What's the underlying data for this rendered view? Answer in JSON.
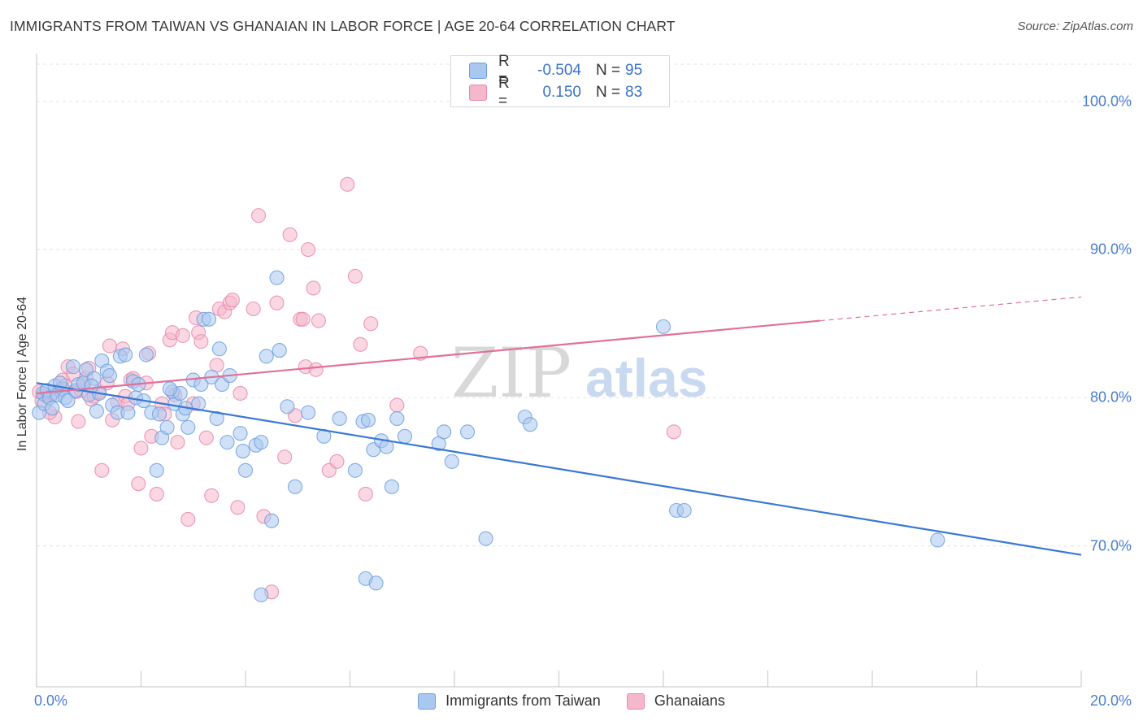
{
  "header": {
    "title": "IMMIGRANTS FROM TAIWAN VS GHANAIAN IN LABOR FORCE | AGE 20-64 CORRELATION CHART",
    "source": "Source: ZipAtlas.com"
  },
  "watermark": {
    "zip": "ZIP",
    "atlas": "atlas"
  },
  "legend": {
    "rows": [
      {
        "r_label": "R =",
        "r_value": "-0.504",
        "n_label": "N =",
        "n_value": "95",
        "color": "#a9c8f0"
      },
      {
        "r_label": "R =",
        "r_value": "0.150",
        "n_label": "N =",
        "n_value": "83",
        "color": "#f5b7cb"
      }
    ]
  },
  "bottom_legend": {
    "taiwan": "Immigrants from Taiwan",
    "ghana": "Ghanaians"
  },
  "colors": {
    "taiwan_fill": "#a9c8f0",
    "taiwan_stroke": "#6f9fde",
    "taiwan_line": "#3a78d4",
    "ghana_fill": "#f5b7cb",
    "ghana_stroke": "#e88aaa",
    "ghana_line": "#e2709a",
    "tick_label": "#4a7fd0",
    "grid": "#e2e2e2"
  },
  "chart_data": {
    "type": "scatter",
    "title": "IMMIGRANTS FROM TAIWAN VS GHANAIAN IN LABOR FORCE | AGE 20-64 CORRELATION CHART",
    "xlabel": "",
    "ylabel": "In Labor Force | Age 20-64",
    "xlim": [
      0,
      20
    ],
    "ylim": [
      60.5,
      103
    ],
    "x_ticks": [
      "0.0%",
      "20.0%"
    ],
    "y_ticks": [
      {
        "value": 70,
        "label": "70.0%"
      },
      {
        "value": 80,
        "label": "80.0%"
      },
      {
        "value": 90,
        "label": "90.0%"
      },
      {
        "value": 100,
        "label": "100.0%"
      }
    ],
    "grid": true,
    "series": [
      {
        "name": "Immigrants from Taiwan",
        "r": -0.504,
        "n": 95,
        "trend": {
          "x0": 0,
          "y0": 81.0,
          "x1": 20,
          "y1": 69.4
        },
        "points": [
          [
            0.05,
            79.0
          ],
          [
            0.12,
            80.3
          ],
          [
            0.15,
            79.6
          ],
          [
            0.2,
            80.5
          ],
          [
            0.25,
            80.0
          ],
          [
            0.3,
            79.3
          ],
          [
            0.35,
            80.8
          ],
          [
            0.4,
            80.2
          ],
          [
            0.5,
            80.6
          ],
          [
            0.55,
            80.0
          ],
          [
            0.6,
            79.8
          ],
          [
            0.7,
            82.1
          ],
          [
            0.75,
            80.5
          ],
          [
            0.8,
            80.9
          ],
          [
            0.9,
            81.0
          ],
          [
            0.95,
            81.9
          ],
          [
            1.0,
            80.2
          ],
          [
            1.1,
            81.3
          ],
          [
            1.15,
            79.1
          ],
          [
            1.2,
            80.3
          ],
          [
            1.25,
            82.5
          ],
          [
            1.35,
            81.8
          ],
          [
            1.4,
            81.5
          ],
          [
            1.45,
            79.5
          ],
          [
            1.55,
            79.0
          ],
          [
            1.6,
            82.8
          ],
          [
            1.7,
            82.9
          ],
          [
            1.75,
            79.0
          ],
          [
            1.85,
            81.1
          ],
          [
            1.9,
            80.0
          ],
          [
            1.95,
            80.9
          ],
          [
            2.05,
            79.8
          ],
          [
            2.1,
            82.9
          ],
          [
            2.2,
            79.0
          ],
          [
            2.3,
            75.1
          ],
          [
            2.35,
            78.9
          ],
          [
            2.4,
            77.3
          ],
          [
            2.5,
            78.0
          ],
          [
            2.6,
            80.4
          ],
          [
            2.65,
            79.6
          ],
          [
            2.75,
            80.3
          ],
          [
            2.8,
            78.9
          ],
          [
            2.85,
            79.3
          ],
          [
            2.9,
            78.0
          ],
          [
            3.0,
            81.2
          ],
          [
            3.1,
            79.6
          ],
          [
            3.15,
            80.9
          ],
          [
            3.2,
            85.3
          ],
          [
            3.3,
            85.3
          ],
          [
            3.35,
            81.4
          ],
          [
            3.45,
            78.6
          ],
          [
            3.5,
            83.3
          ],
          [
            3.55,
            80.9
          ],
          [
            3.65,
            77.0
          ],
          [
            3.7,
            81.5
          ],
          [
            3.9,
            77.6
          ],
          [
            4.0,
            75.1
          ],
          [
            4.2,
            76.8
          ],
          [
            4.3,
            77.0
          ],
          [
            4.4,
            82.8
          ],
          [
            4.5,
            71.7
          ],
          [
            4.6,
            88.1
          ],
          [
            4.65,
            83.2
          ],
          [
            4.8,
            79.4
          ],
          [
            4.95,
            74.0
          ],
          [
            5.5,
            77.4
          ],
          [
            5.8,
            78.6
          ],
          [
            6.1,
            75.1
          ],
          [
            6.25,
            78.4
          ],
          [
            6.35,
            78.5
          ],
          [
            6.45,
            76.5
          ],
          [
            6.6,
            77.1
          ],
          [
            6.7,
            76.7
          ],
          [
            6.8,
            74.0
          ],
          [
            6.9,
            78.6
          ],
          [
            7.05,
            77.4
          ],
          [
            7.7,
            76.9
          ],
          [
            7.8,
            77.7
          ],
          [
            7.95,
            75.7
          ],
          [
            8.25,
            77.7
          ],
          [
            8.6,
            70.5
          ],
          [
            9.35,
            78.7
          ],
          [
            9.45,
            78.2
          ],
          [
            12.0,
            84.8
          ],
          [
            12.25,
            72.4
          ],
          [
            12.4,
            72.4
          ],
          [
            17.25,
            70.4
          ],
          [
            4.3,
            66.7
          ],
          [
            6.3,
            67.8
          ],
          [
            6.5,
            67.5
          ],
          [
            0.45,
            81.0
          ],
          [
            1.05,
            80.8
          ],
          [
            2.55,
            80.6
          ],
          [
            3.95,
            76.4
          ],
          [
            5.2,
            79.0
          ]
        ]
      },
      {
        "name": "Ghanaians",
        "r": 0.15,
        "n": 83,
        "trend": {
          "x0": 0,
          "y0": 80.3,
          "x1": 15,
          "y1": 85.2,
          "dash_to_x": 20,
          "dash_to_y": 86.8
        },
        "points": [
          [
            0.05,
            80.4
          ],
          [
            0.1,
            79.8
          ],
          [
            0.2,
            80.1
          ],
          [
            0.3,
            80.3
          ],
          [
            0.35,
            78.7
          ],
          [
            0.45,
            80.5
          ],
          [
            0.5,
            81.2
          ],
          [
            0.55,
            80.8
          ],
          [
            0.6,
            82.1
          ],
          [
            0.7,
            81.6
          ],
          [
            0.75,
            80.4
          ],
          [
            0.8,
            78.4
          ],
          [
            0.85,
            80.5
          ],
          [
            0.9,
            80.9
          ],
          [
            0.95,
            81.3
          ],
          [
            1.0,
            82.0
          ],
          [
            1.05,
            79.9
          ],
          [
            1.1,
            80.1
          ],
          [
            1.2,
            80.4
          ],
          [
            1.25,
            75.1
          ],
          [
            1.35,
            81.0
          ],
          [
            1.4,
            83.5
          ],
          [
            1.45,
            78.5
          ],
          [
            1.55,
            79.7
          ],
          [
            1.65,
            83.3
          ],
          [
            1.7,
            80.1
          ],
          [
            1.75,
            79.6
          ],
          [
            1.8,
            81.2
          ],
          [
            1.85,
            81.3
          ],
          [
            1.95,
            74.2
          ],
          [
            2.0,
            76.6
          ],
          [
            2.1,
            81.0
          ],
          [
            2.15,
            83.0
          ],
          [
            2.2,
            77.4
          ],
          [
            2.3,
            73.5
          ],
          [
            2.4,
            79.6
          ],
          [
            2.45,
            78.9
          ],
          [
            2.55,
            83.9
          ],
          [
            2.6,
            84.4
          ],
          [
            2.65,
            80.2
          ],
          [
            2.7,
            77.0
          ],
          [
            2.8,
            84.2
          ],
          [
            2.9,
            71.8
          ],
          [
            3.0,
            79.6
          ],
          [
            3.05,
            85.4
          ],
          [
            3.1,
            84.4
          ],
          [
            3.15,
            83.8
          ],
          [
            3.25,
            77.3
          ],
          [
            3.35,
            73.4
          ],
          [
            3.45,
            82.2
          ],
          [
            3.5,
            86.0
          ],
          [
            3.6,
            85.8
          ],
          [
            3.7,
            86.4
          ],
          [
            3.75,
            86.6
          ],
          [
            3.85,
            72.6
          ],
          [
            3.9,
            80.3
          ],
          [
            4.15,
            86.0
          ],
          [
            4.25,
            92.3
          ],
          [
            4.35,
            72.0
          ],
          [
            4.5,
            66.9
          ],
          [
            4.6,
            86.4
          ],
          [
            4.75,
            76.0
          ],
          [
            4.85,
            91.0
          ],
          [
            4.95,
            78.8
          ],
          [
            5.05,
            85.3
          ],
          [
            5.1,
            85.3
          ],
          [
            5.15,
            82.1
          ],
          [
            5.2,
            90.0
          ],
          [
            5.3,
            87.4
          ],
          [
            5.35,
            81.9
          ],
          [
            5.4,
            85.2
          ],
          [
            5.6,
            75.1
          ],
          [
            5.75,
            75.7
          ],
          [
            5.95,
            94.4
          ],
          [
            6.1,
            88.2
          ],
          [
            6.2,
            83.6
          ],
          [
            6.3,
            73.5
          ],
          [
            6.4,
            85.0
          ],
          [
            6.9,
            79.5
          ],
          [
            7.35,
            83.0
          ],
          [
            12.2,
            77.7
          ],
          [
            0.15,
            80.2
          ],
          [
            0.25,
            79.0
          ]
        ]
      }
    ]
  }
}
